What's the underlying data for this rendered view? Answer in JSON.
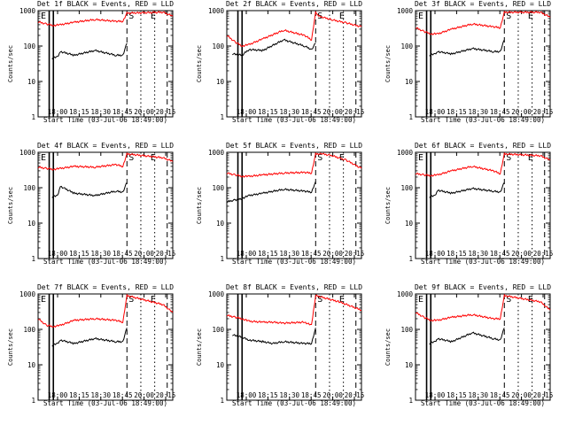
{
  "chart_data": [
    {
      "type": "line",
      "title": "Det 1f BLACK = Events, RED = LLD",
      "xlabel": "Start Time (03-Jul-06 18:49:00)",
      "ylabel": "Counts/sec",
      "x_ticks": [
        "18:00",
        "18:15",
        "18:30",
        "18:45",
        "20:00",
        "20:15"
      ],
      "y_ticks": [
        "1",
        "10",
        "100",
        "1000"
      ],
      "y_scale": "log",
      "ylim": [
        1,
        1000
      ],
      "xlim": [
        "18:49",
        "20:26"
      ],
      "series": [
        {
          "name": "Events",
          "color": "#000000",
          "x": [
            "18:59",
            "19:03",
            "19:05",
            "19:15",
            "19:30",
            "19:45",
            "19:50",
            "19:53"
          ],
          "y": [
            45,
            50,
            70,
            55,
            75,
            55,
            55,
            120
          ]
        },
        {
          "name": "LLD",
          "color": "#ff0000",
          "x": [
            "18:49",
            "18:55",
            "19:00",
            "19:05",
            "19:15",
            "19:30",
            "19:45",
            "19:50",
            "19:53",
            "20:19",
            "20:26"
          ],
          "y": [
            480,
            420,
            380,
            400,
            470,
            560,
            500,
            500,
            850,
            900,
            700
          ]
        }
      ],
      "markers": [
        "E",
        "S",
        "E"
      ]
    },
    {
      "type": "line",
      "title": "Det 2f BLACK = Events, RED = LLD",
      "xlabel": "Start Time (03-Jul-06 18:49:00)",
      "ylabel": "Counts/sec",
      "x_ticks": [
        "18:00",
        "18:15",
        "18:30",
        "18:45",
        "20:00",
        "20:15"
      ],
      "y_ticks": [
        "1",
        "10",
        "100",
        "1000"
      ],
      "y_scale": "log",
      "ylim": [
        1,
        1000
      ],
      "xlim": [
        "18:49",
        "20:26"
      ],
      "series": [
        {
          "name": "Events",
          "color": "#000000",
          "x": [
            "18:53",
            "19:00",
            "19:05",
            "19:15",
            "19:30",
            "19:45",
            "19:50",
            "19:53"
          ],
          "y": [
            60,
            55,
            80,
            75,
            150,
            100,
            80,
            120
          ]
        },
        {
          "name": "LLD",
          "color": "#ff0000",
          "x": [
            "18:49",
            "18:55",
            "19:00",
            "19:05",
            "19:15",
            "19:30",
            "19:45",
            "19:50",
            "19:53",
            "19:55",
            "20:05",
            "20:15",
            "20:26"
          ],
          "y": [
            200,
            130,
            100,
            110,
            160,
            280,
            200,
            150,
            900,
            700,
            550,
            450,
            350
          ]
        }
      ],
      "markers": [
        "S",
        "E"
      ]
    },
    {
      "type": "line",
      "title": "Det 3f BLACK = Events, RED = LLD",
      "xlabel": "Start Time (03-Jul-06 18:49:00)",
      "ylabel": "Counts/sec",
      "x_ticks": [
        "18:00",
        "18:15",
        "18:30",
        "18:45",
        "20:00",
        "20:15"
      ],
      "y_ticks": [
        "1",
        "10",
        "100",
        "1000"
      ],
      "y_scale": "log",
      "ylim": [
        1,
        1000
      ],
      "xlim": [
        "18:49",
        "20:26"
      ],
      "series": [
        {
          "name": "Events",
          "color": "#000000",
          "x": [
            "18:59",
            "19:03",
            "19:05",
            "19:15",
            "19:30",
            "19:45",
            "19:50",
            "19:53"
          ],
          "y": [
            55,
            60,
            70,
            60,
            85,
            70,
            70,
            150
          ]
        },
        {
          "name": "LLD",
          "color": "#ff0000",
          "x": [
            "18:49",
            "18:55",
            "19:00",
            "19:05",
            "19:15",
            "19:30",
            "19:45",
            "19:50",
            "19:53",
            "20:19",
            "20:26"
          ],
          "y": [
            330,
            260,
            220,
            220,
            300,
            420,
            350,
            330,
            900,
            900,
            650
          ]
        }
      ],
      "markers": [
        "E",
        "S",
        "E"
      ]
    },
    {
      "type": "line",
      "title": "Det 4f BLACK = Events, RED = LLD",
      "xlabel": "Start Time (03-Jul-06 18:49:00)",
      "ylabel": "Counts/sec",
      "x_ticks": [
        "18:00",
        "18:15",
        "18:30",
        "18:45",
        "20:00",
        "20:15"
      ],
      "y_ticks": [
        "1",
        "10",
        "100",
        "1000"
      ],
      "y_scale": "log",
      "ylim": [
        1,
        1000
      ],
      "xlim": [
        "18:49",
        "20:26"
      ],
      "series": [
        {
          "name": "Events",
          "color": "#000000",
          "x": [
            "18:59",
            "19:03",
            "19:05",
            "19:15",
            "19:30",
            "19:45",
            "19:50",
            "19:53"
          ],
          "y": [
            55,
            60,
            110,
            70,
            60,
            80,
            75,
            140
          ]
        },
        {
          "name": "LLD",
          "color": "#ff0000",
          "x": [
            "18:49",
            "18:55",
            "19:00",
            "19:05",
            "19:15",
            "19:30",
            "19:45",
            "19:50",
            "19:53",
            "20:19",
            "20:26"
          ],
          "y": [
            380,
            350,
            330,
            350,
            400,
            380,
            450,
            400,
            900,
            700,
            550
          ]
        }
      ],
      "markers": [
        "E",
        "S",
        "E"
      ]
    },
    {
      "type": "line",
      "title": "Det 5f BLACK = Events, RED = LLD",
      "xlabel": "Start Time (03-Jul-06 18:49:00)",
      "ylabel": "Counts/sec",
      "x_ticks": [
        "18:00",
        "18:15",
        "18:30",
        "18:45",
        "20:00",
        "20:15"
      ],
      "y_ticks": [
        "1",
        "10",
        "100",
        "1000"
      ],
      "y_scale": "log",
      "ylim": [
        1,
        1000
      ],
      "xlim": [
        "18:49",
        "20:26"
      ],
      "series": [
        {
          "name": "Events",
          "color": "#000000",
          "x": [
            "18:49",
            "18:55",
            "19:00",
            "19:05",
            "19:15",
            "19:30",
            "19:45",
            "19:50",
            "19:53"
          ],
          "y": [
            40,
            45,
            50,
            60,
            70,
            90,
            80,
            75,
            150
          ]
        },
        {
          "name": "LLD",
          "color": "#ff0000",
          "x": [
            "18:49",
            "18:55",
            "19:00",
            "19:05",
            "19:15",
            "19:30",
            "19:45",
            "19:50",
            "19:53",
            "19:58",
            "20:05",
            "20:15",
            "20:26"
          ],
          "y": [
            260,
            230,
            210,
            210,
            230,
            260,
            270,
            260,
            900,
            900,
            800,
            600,
            350
          ]
        }
      ],
      "markers": [
        "S",
        "E"
      ]
    },
    {
      "type": "line",
      "title": "Det 6f BLACK = Events, RED = LLD",
      "xlabel": "Start Time (03-Jul-06 18:49:00)",
      "ylabel": "Counts/sec",
      "x_ticks": [
        "18:00",
        "18:15",
        "18:30",
        "18:45",
        "20:00",
        "20:15"
      ],
      "y_ticks": [
        "1",
        "10",
        "100",
        "1000"
      ],
      "y_scale": "log",
      "ylim": [
        1,
        1000
      ],
      "xlim": [
        "18:49",
        "20:26"
      ],
      "series": [
        {
          "name": "Events",
          "color": "#000000",
          "x": [
            "18:59",
            "19:03",
            "19:05",
            "19:15",
            "19:30",
            "19:45",
            "19:50",
            "19:53"
          ],
          "y": [
            55,
            60,
            85,
            70,
            95,
            80,
            75,
            140
          ]
        },
        {
          "name": "LLD",
          "color": "#ff0000",
          "x": [
            "18:49",
            "18:55",
            "19:00",
            "19:05",
            "19:15",
            "19:30",
            "19:45",
            "19:50",
            "19:53",
            "20:19",
            "20:26"
          ],
          "y": [
            250,
            230,
            220,
            230,
            300,
            400,
            300,
            250,
            900,
            800,
            600
          ]
        }
      ],
      "markers": [
        "E",
        "S",
        "E"
      ]
    },
    {
      "type": "line",
      "title": "Det 7f BLACK = Events, RED = LLD",
      "xlabel": "Start Time (03-Jul-06 18:49:00)",
      "ylabel": "Counts/sec",
      "x_ticks": [
        "18:00",
        "18:15",
        "18:30",
        "18:45",
        "20:00",
        "20:15"
      ],
      "y_ticks": [
        "1",
        "10",
        "100",
        "1000"
      ],
      "y_scale": "log",
      "ylim": [
        1,
        1000
      ],
      "xlim": [
        "18:49",
        "20:26"
      ],
      "series": [
        {
          "name": "Events",
          "color": "#000000",
          "x": [
            "18:59",
            "19:03",
            "19:05",
            "19:15",
            "19:30",
            "19:45",
            "19:50",
            "19:53"
          ],
          "y": [
            35,
            40,
            50,
            40,
            55,
            45,
            45,
            110
          ]
        },
        {
          "name": "LLD",
          "color": "#ff0000",
          "x": [
            "18:49",
            "18:55",
            "19:00",
            "19:05",
            "19:15",
            "19:30",
            "19:45",
            "19:50",
            "19:53",
            "20:19",
            "20:26"
          ],
          "y": [
            200,
            130,
            120,
            130,
            180,
            200,
            180,
            160,
            900,
            500,
            300
          ]
        }
      ],
      "markers": [
        "E",
        "S",
        "E"
      ]
    },
    {
      "type": "line",
      "title": "Det 8f BLACK = Events, RED = LLD",
      "xlabel": "Start Time (03-Jul-06 18:49:00)",
      "ylabel": "Counts/sec",
      "x_ticks": [
        "18:00",
        "18:15",
        "18:30",
        "18:45",
        "20:00",
        "20:15"
      ],
      "y_ticks": [
        "1",
        "10",
        "100",
        "1000"
      ],
      "y_scale": "log",
      "ylim": [
        1,
        1000
      ],
      "xlim": [
        "18:49",
        "20:26"
      ],
      "series": [
        {
          "name": "Events",
          "color": "#000000",
          "x": [
            "18:53",
            "19:00",
            "19:05",
            "19:15",
            "19:22",
            "19:30",
            "19:45",
            "19:50",
            "19:53"
          ],
          "y": [
            70,
            60,
            50,
            45,
            40,
            45,
            40,
            40,
            110
          ]
        },
        {
          "name": "LLD",
          "color": "#ff0000",
          "x": [
            "18:49",
            "18:55",
            "19:00",
            "19:05",
            "19:15",
            "19:22",
            "19:30",
            "19:45",
            "19:50",
            "19:53",
            "20:10",
            "20:26"
          ],
          "y": [
            250,
            220,
            200,
            170,
            160,
            160,
            150,
            160,
            130,
            900,
            600,
            350
          ]
        }
      ],
      "markers": [
        "S",
        "E"
      ]
    },
    {
      "type": "line",
      "title": "Det 9f BLACK = Events, RED = LLD",
      "xlabel": "Start Time (03-Jul-06 18:49:00)",
      "ylabel": "Counts/sec",
      "x_ticks": [
        "18:00",
        "18:15",
        "18:30",
        "18:45",
        "20:00",
        "20:15"
      ],
      "y_ticks": [
        "1",
        "10",
        "100",
        "1000"
      ],
      "y_scale": "log",
      "ylim": [
        1,
        1000
      ],
      "xlim": [
        "18:49",
        "20:26"
      ],
      "series": [
        {
          "name": "Events",
          "color": "#000000",
          "x": [
            "18:59",
            "19:03",
            "19:05",
            "19:15",
            "19:30",
            "19:45",
            "19:50",
            "19:53"
          ],
          "y": [
            40,
            45,
            55,
            45,
            80,
            55,
            50,
            110
          ]
        },
        {
          "name": "LLD",
          "color": "#ff0000",
          "x": [
            "18:49",
            "18:55",
            "19:00",
            "19:05",
            "19:15",
            "19:30",
            "19:45",
            "19:50",
            "19:53",
            "20:19",
            "20:26"
          ],
          "y": [
            300,
            220,
            180,
            180,
            220,
            260,
            200,
            200,
            900,
            600,
            350
          ]
        }
      ],
      "markers": [
        "E",
        "S",
        "E"
      ]
    }
  ]
}
